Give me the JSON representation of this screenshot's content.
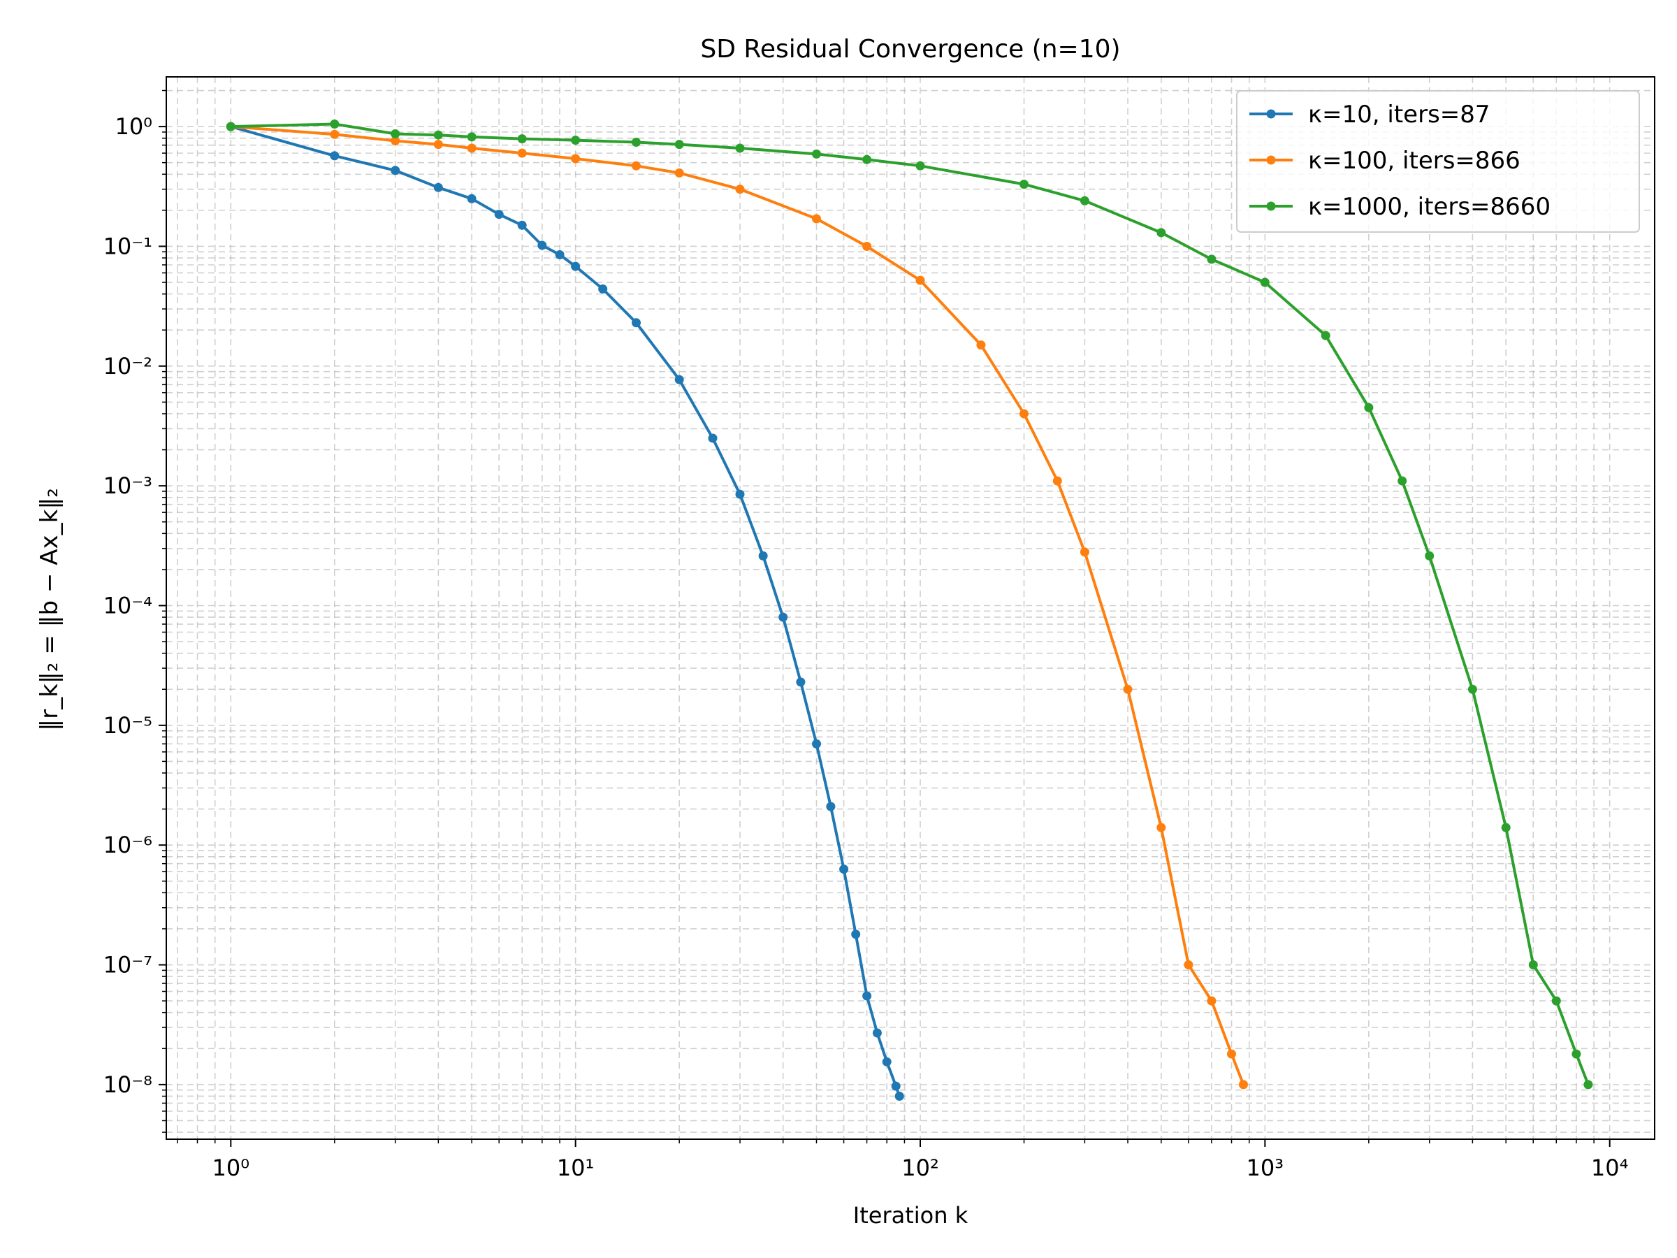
{
  "chart_data": {
    "type": "line",
    "title": "SD Residual Convergence (n=10)",
    "xlabel": "Iteration k",
    "ylabel": "‖r_k‖₂ = ‖b − Ax_k‖₂",
    "x_scale": "log",
    "y_scale": "log",
    "xlim": [
      0.65,
      13500
    ],
    "ylim": [
      3.5e-09,
      2.6
    ],
    "grid": true,
    "legend_position": "top-right",
    "x_ticks": [
      {
        "value": 1,
        "label": "10⁰"
      },
      {
        "value": 10,
        "label": "10¹"
      },
      {
        "value": 100,
        "label": "10²"
      },
      {
        "value": 1000,
        "label": "10³"
      },
      {
        "value": 10000,
        "label": "10⁴"
      }
    ],
    "y_ticks": [
      {
        "value": 1,
        "label": "10⁰"
      },
      {
        "value": 0.1,
        "label": "10⁻¹"
      },
      {
        "value": 0.01,
        "label": "10⁻²"
      },
      {
        "value": 0.001,
        "label": "10⁻³"
      },
      {
        "value": 0.0001,
        "label": "10⁻⁴"
      },
      {
        "value": 1e-05,
        "label": "10⁻⁵"
      },
      {
        "value": 1e-06,
        "label": "10⁻⁶"
      },
      {
        "value": 1e-07,
        "label": "10⁻⁷"
      },
      {
        "value": 1e-08,
        "label": "10⁻⁸"
      }
    ],
    "series": [
      {
        "name": "κ=10, iters=87",
        "color": "#1f77b4",
        "x": [
          1,
          2,
          3,
          4,
          5,
          6,
          7,
          8,
          9,
          10,
          12,
          15,
          20,
          25,
          30,
          35,
          40,
          45,
          50,
          55,
          60,
          65,
          70,
          75,
          80,
          85,
          87
        ],
        "y": [
          1.0,
          0.57,
          0.43,
          0.31,
          0.25,
          0.185,
          0.15,
          0.102,
          0.085,
          0.068,
          0.044,
          0.023,
          0.0077,
          0.0025,
          0.00085,
          0.00026,
          8e-05,
          2.3e-05,
          7e-06,
          2.1e-06,
          6.3e-07,
          1.8e-07,
          5.5e-08,
          2.7e-08,
          1.55e-08,
          9.7e-09,
          8e-09
        ]
      },
      {
        "name": "κ=100, iters=866",
        "color": "#ff7f0e",
        "x": [
          1,
          2,
          3,
          4,
          5,
          7,
          10,
          15,
          20,
          30,
          50,
          70,
          100,
          150,
          200,
          250,
          300,
          400,
          500,
          600,
          700,
          800,
          866
        ],
        "y": [
          1.0,
          0.86,
          0.76,
          0.71,
          0.66,
          0.6,
          0.54,
          0.47,
          0.41,
          0.3,
          0.17,
          0.1,
          0.052,
          0.015,
          0.004,
          0.0011,
          0.00028,
          2e-05,
          1.4e-06,
          1e-07,
          5e-08,
          1.8e-08,
          1e-08
        ]
      },
      {
        "name": "κ=1000, iters=8660",
        "color": "#2ca02c",
        "x": [
          1,
          2,
          3,
          4,
          5,
          7,
          10,
          15,
          20,
          30,
          50,
          70,
          100,
          200,
          300,
          500,
          700,
          1000,
          1500,
          2000,
          2500,
          3000,
          4000,
          5000,
          6000,
          7000,
          8000,
          8660
        ],
        "y": [
          1.0,
          1.05,
          0.87,
          0.85,
          0.82,
          0.79,
          0.77,
          0.74,
          0.71,
          0.66,
          0.59,
          0.53,
          0.47,
          0.33,
          0.24,
          0.13,
          0.078,
          0.05,
          0.018,
          0.0045,
          0.0011,
          0.00026,
          2e-05,
          1.4e-06,
          1e-07,
          5e-08,
          1.8e-08,
          1e-08
        ]
      }
    ]
  }
}
